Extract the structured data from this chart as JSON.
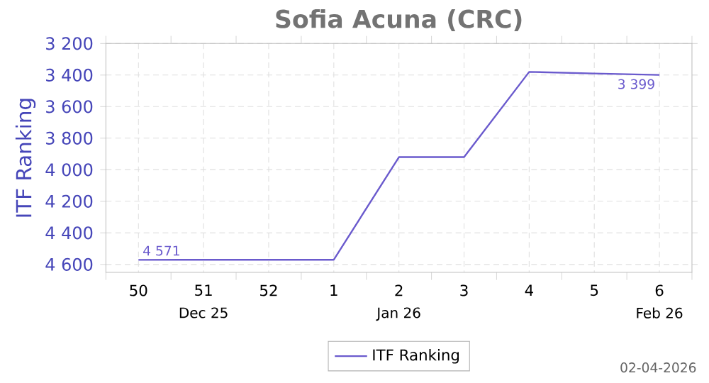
{
  "chart_data": {
    "type": "line",
    "title": "Sofia Acuna (CRC)",
    "ylabel": "ITF Ranking",
    "categories": [
      "50",
      "51",
      "52",
      "1",
      "2",
      "3",
      "4",
      "5",
      "6"
    ],
    "series": [
      {
        "name": "ITF Ranking",
        "color": "#6a5acd",
        "values": [
          4571,
          4570,
          4570,
          4570,
          3920,
          3920,
          3380,
          3390,
          3399
        ],
        "value_labels": [
          "4 571",
          null,
          null,
          null,
          null,
          null,
          null,
          null,
          "3 399"
        ]
      }
    ],
    "ylim": [
      4650,
      3200
    ],
    "yticks": [
      {
        "value": 3200,
        "label": "3 200"
      },
      {
        "value": 3400,
        "label": "3 400"
      },
      {
        "value": 3600,
        "label": "3 600"
      },
      {
        "value": 3800,
        "label": "3 800"
      },
      {
        "value": 4000,
        "label": "4 000"
      },
      {
        "value": 4200,
        "label": "4 200"
      },
      {
        "value": 4400,
        "label": "4 400"
      },
      {
        "value": 4600,
        "label": "4 600"
      }
    ],
    "grid": true,
    "legend": "bottom",
    "marker": "none",
    "line_style": "solid",
    "annotations": [
      "Dec 25",
      "Jan 26",
      "Feb 26",
      "02-04-2026"
    ]
  }
}
